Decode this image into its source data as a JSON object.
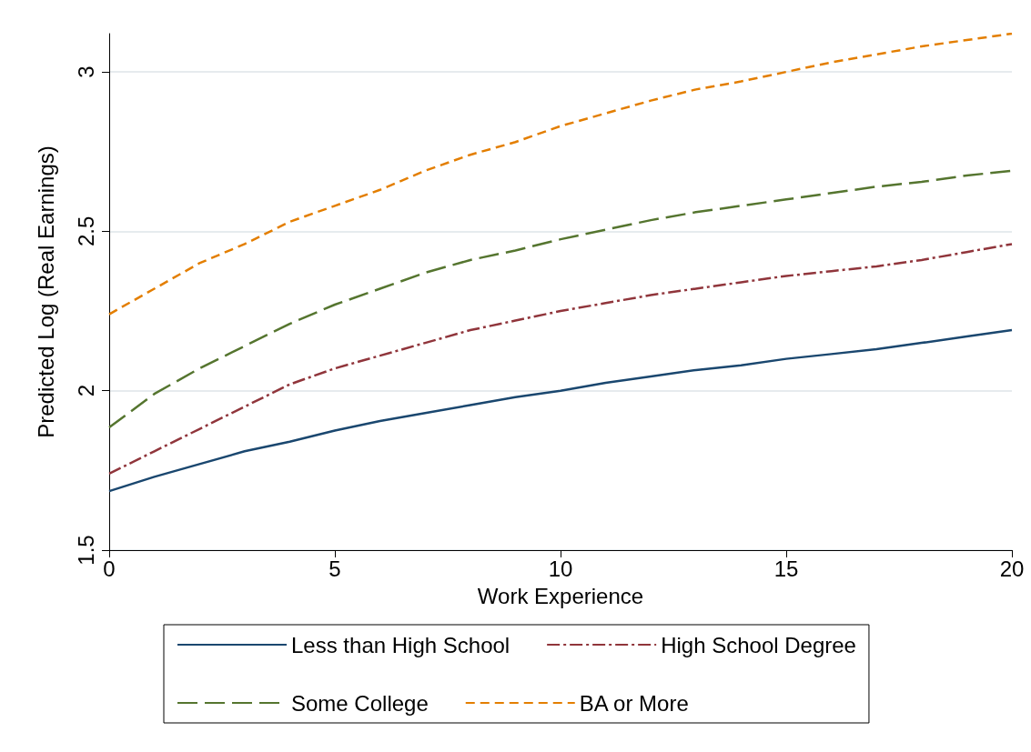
{
  "chart_data": {
    "type": "line",
    "xlabel": "Work Experience",
    "ylabel": "Predicted Log (Real Earnings)",
    "x": [
      0,
      1,
      2,
      3,
      4,
      5,
      6,
      7,
      8,
      9,
      10,
      11,
      12,
      13,
      14,
      15,
      16,
      17,
      18,
      19,
      20
    ],
    "series": [
      {
        "name": "Less than High School",
        "color": "#1a476f",
        "line_style": "solid",
        "values": [
          1.685,
          1.73,
          1.77,
          1.81,
          1.84,
          1.875,
          1.905,
          1.93,
          1.955,
          1.98,
          2.0,
          2.025,
          2.045,
          2.065,
          2.08,
          2.1,
          2.115,
          2.13,
          2.15,
          2.17,
          2.19
        ]
      },
      {
        "name": "High School Degree",
        "color": "#90353b",
        "line_style": "dashdot",
        "values": [
          1.74,
          1.81,
          1.88,
          1.95,
          2.02,
          2.07,
          2.11,
          2.15,
          2.19,
          2.22,
          2.25,
          2.275,
          2.3,
          2.32,
          2.34,
          2.36,
          2.375,
          2.39,
          2.41,
          2.435,
          2.46
        ]
      },
      {
        "name": "Some College",
        "color": "#55752f",
        "line_style": "longdash",
        "values": [
          1.885,
          1.99,
          2.07,
          2.14,
          2.21,
          2.27,
          2.32,
          2.37,
          2.41,
          2.44,
          2.475,
          2.505,
          2.535,
          2.56,
          2.58,
          2.6,
          2.62,
          2.64,
          2.655,
          2.675,
          2.69
        ]
      },
      {
        "name": "BA or More",
        "color": "#e37e00",
        "line_style": "dashed",
        "values": [
          2.24,
          2.32,
          2.4,
          2.46,
          2.53,
          2.58,
          2.63,
          2.69,
          2.74,
          2.78,
          2.83,
          2.87,
          2.91,
          2.945,
          2.97,
          3.0,
          3.03,
          3.055,
          3.08,
          3.1,
          3.12
        ]
      }
    ],
    "xlim": [
      0,
      20
    ],
    "xticks": [
      0,
      5,
      10,
      15,
      20
    ],
    "ylim": [
      1.5,
      3.12
    ],
    "yticks": [
      1.5,
      2,
      2.5,
      3
    ],
    "grid": "y",
    "legend": "bottom",
    "marker": "none"
  }
}
